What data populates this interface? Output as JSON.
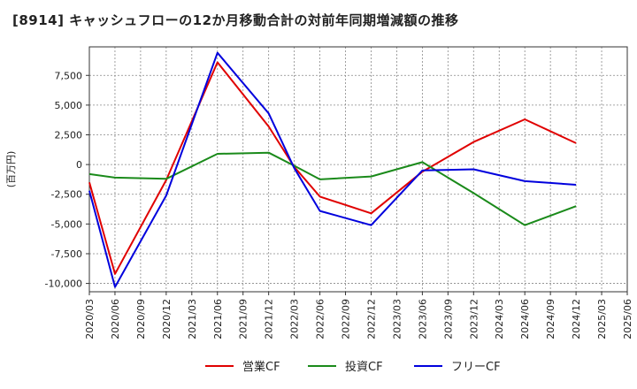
{
  "title": "[8914]  キャッシュフローの12か月移動合計の対前年同期増減額の推移",
  "chart_data": {
    "type": "line",
    "ylabel": "(百万円)",
    "ylim": [
      -10700,
      9900
    ],
    "yticks": [
      7500,
      5000,
      2500,
      0,
      -2500,
      -5000,
      -7500,
      -10000
    ],
    "ytick_labels": [
      "7,500",
      "5,000",
      "2,500",
      "0",
      "-2,500",
      "-5,000",
      "-7,500",
      "-10,000"
    ],
    "x_ticks": [
      "2020/03",
      "2020/06",
      "2020/09",
      "2020/12",
      "2021/03",
      "2021/06",
      "2021/09",
      "2021/12",
      "2022/03",
      "2022/06",
      "2022/09",
      "2022/12",
      "2023/03",
      "2023/06",
      "2023/09",
      "2023/12",
      "2024/03",
      "2024/06",
      "2024/09",
      "2024/12",
      "2025/03",
      "2025/06"
    ],
    "grid": true,
    "legend_position": "bottom",
    "series": [
      {
        "name": "営業CF",
        "color": "#e00000",
        "points": [
          [
            "2020/03",
            -1500
          ],
          [
            "2020/06",
            -9200
          ],
          [
            "2020/12",
            -1300
          ],
          [
            "2021/06",
            8600
          ],
          [
            "2021/12",
            3200
          ],
          [
            "2022/03",
            -200
          ],
          [
            "2022/06",
            -2700
          ],
          [
            "2022/12",
            -4100
          ],
          [
            "2023/06",
            -600
          ],
          [
            "2023/12",
            1900
          ],
          [
            "2024/06",
            3800
          ],
          [
            "2024/12",
            1800
          ]
        ]
      },
      {
        "name": "投資CF",
        "color": "#1a8a1a",
        "points": [
          [
            "2020/03",
            -800
          ],
          [
            "2020/06",
            -1100
          ],
          [
            "2020/12",
            -1200
          ],
          [
            "2021/06",
            900
          ],
          [
            "2021/12",
            1000
          ],
          [
            "2022/03",
            -100
          ],
          [
            "2022/06",
            -1250
          ],
          [
            "2022/12",
            -1000
          ],
          [
            "2023/06",
            200
          ],
          [
            "2023/12",
            -2400
          ],
          [
            "2024/06",
            -5100
          ],
          [
            "2024/12",
            -3500
          ]
        ]
      },
      {
        "name": "フリーCF",
        "color": "#0000dd",
        "points": [
          [
            "2020/03",
            -2200
          ],
          [
            "2020/06",
            -10300
          ],
          [
            "2020/12",
            -2600
          ],
          [
            "2021/06",
            9400
          ],
          [
            "2021/12",
            4300
          ],
          [
            "2022/03",
            -300
          ],
          [
            "2022/06",
            -3900
          ],
          [
            "2022/12",
            -5100
          ],
          [
            "2023/06",
            -500
          ],
          [
            "2023/12",
            -400
          ],
          [
            "2024/06",
            -1400
          ],
          [
            "2024/12",
            -1700
          ]
        ]
      }
    ]
  }
}
